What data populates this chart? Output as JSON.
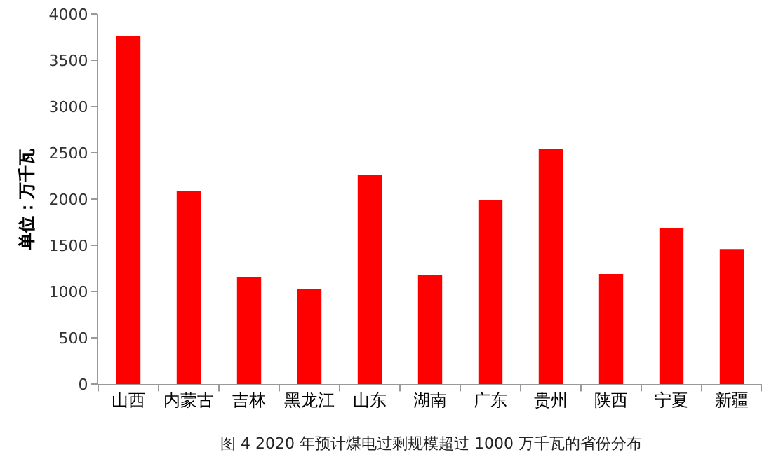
{
  "chart_data": {
    "type": "bar",
    "categories": [
      "山西",
      "内蒙古",
      "吉林",
      "黑龙江",
      "山东",
      "湖南",
      "广东",
      "贵州",
      "陕西",
      "宁夏",
      "新疆"
    ],
    "values": [
      3760,
      2090,
      1160,
      1030,
      2260,
      1180,
      1990,
      2540,
      1190,
      1690,
      1460
    ],
    "color": "#ff0000",
    "ylabel": "单位：万千瓦",
    "ylim": [
      0,
      4000
    ],
    "yticks": [
      0,
      500,
      1000,
      1500,
      2000,
      2500,
      3000,
      3500,
      4000
    ],
    "grid": false,
    "legend": false,
    "annotations": [
      "图 4 2020 年预计煤电过剩规模超过 1000 万千瓦的省份分布"
    ]
  }
}
